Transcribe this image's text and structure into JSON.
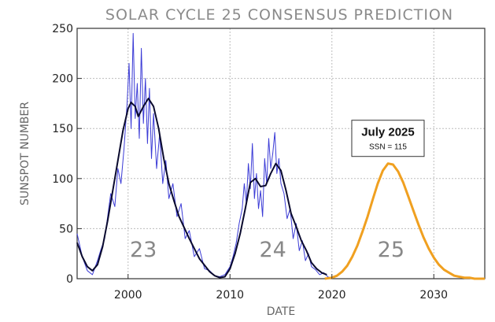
{
  "chart_data": {
    "type": "line",
    "title": "SOLAR CYCLE 25 CONSENSUS PREDICTION",
    "xlabel": "DATE",
    "ylabel": "SUNSPOT NUMBER",
    "xlim": [
      1995,
      2035
    ],
    "ylim": [
      0,
      250
    ],
    "xticks": [
      2000,
      2010,
      2020,
      2030
    ],
    "yticks": [
      0,
      50,
      100,
      150,
      200,
      250
    ],
    "grid": true,
    "cycle_labels": [
      {
        "text": "23",
        "x": 2001.5,
        "y": 22
      },
      {
        "text": "24",
        "x": 2014.2,
        "y": 22
      },
      {
        "text": "25",
        "x": 2025.8,
        "y": 22
      }
    ],
    "annotation": {
      "title": "July 2025",
      "subtitle": "SSN = 115",
      "x": 2025.5,
      "y": 115
    },
    "colors": {
      "monthly": "#3b3bd6",
      "smoothed": "#0a0a2e",
      "prediction": "#f0a020",
      "grid": "#bdbdbd"
    },
    "series": [
      {
        "color": "#3b3bd6",
        "x": [
          1995.0,
          1995.5,
          1996.0,
          1996.5,
          1997.0,
          1997.3,
          1997.7,
          1998.0,
          1998.3,
          1998.7,
          1999.0,
          1999.3,
          1999.6,
          1999.9,
          2000.1,
          2000.3,
          2000.5,
          2000.7,
          2000.9,
          2001.1,
          2001.3,
          2001.5,
          2001.7,
          2001.9,
          2002.1,
          2002.3,
          2002.5,
          2002.8,
          2003.1,
          2003.4,
          2003.7,
          2004.0,
          2004.4,
          2004.8,
          2005.2,
          2005.6,
          2006.0,
          2006.5,
          2007.0,
          2007.5,
          2008.0,
          2008.5,
          2009.0,
          2009.5,
          2010.0,
          2010.3,
          2010.6,
          2010.9,
          2011.2,
          2011.4,
          2011.6,
          2011.8,
          2012.0,
          2012.2,
          2012.4,
          2012.6,
          2012.8,
          2013.0,
          2013.2,
          2013.4,
          2013.6,
          2013.8,
          2014.0,
          2014.2,
          2014.4,
          2014.6,
          2014.8,
          2015.0,
          2015.3,
          2015.6,
          2015.9,
          2016.2,
          2016.5,
          2016.8,
          2017.1,
          2017.4,
          2017.7,
          2018.0,
          2018.4,
          2018.8,
          2019.2,
          2019.6,
          2019.9
        ],
        "values": [
          45,
          22,
          8,
          4,
          18,
          28,
          40,
          62,
          85,
          72,
          110,
          95,
          130,
          175,
          215,
          150,
          245,
          160,
          195,
          140,
          230,
          155,
          200,
          135,
          190,
          120,
          165,
          110,
          145,
          95,
          118,
          80,
          95,
          62,
          75,
          40,
          48,
          22,
          30,
          10,
          8,
          3,
          2,
          4,
          12,
          22,
          35,
          55,
          70,
          95,
          75,
          115,
          90,
          135,
          80,
          105,
          70,
          88,
          62,
          120,
          95,
          140,
          110,
          125,
          146,
          105,
          120,
          95,
          85,
          60,
          70,
          40,
          55,
          28,
          38,
          18,
          25,
          12,
          9,
          4,
          6,
          2,
          0
        ]
      },
      {
        "color": "#0a0a2e",
        "x": [
          1995.0,
          1995.5,
          1996.0,
          1996.5,
          1997.0,
          1997.5,
          1998.0,
          1998.5,
          1999.0,
          1999.5,
          2000.0,
          2000.3,
          2000.7,
          2001.0,
          2001.5,
          2002.0,
          2002.5,
          2003.0,
          2003.5,
          2004.0,
          2004.5,
          2005.0,
          2006.0,
          2007.0,
          2008.0,
          2008.5,
          2009.0,
          2009.5,
          2010.0,
          2010.5,
          2011.0,
          2011.5,
          2012.0,
          2012.5,
          2013.0,
          2013.5,
          2014.0,
          2014.5,
          2015.0,
          2015.5,
          2016.0,
          2016.5,
          2017.0,
          2017.5,
          2018.0,
          2018.5,
          2019.0,
          2019.5
        ],
        "values": [
          36,
          22,
          12,
          8,
          14,
          32,
          58,
          88,
          118,
          148,
          170,
          176,
          172,
          162,
          172,
          180,
          172,
          150,
          120,
          95,
          78,
          62,
          40,
          20,
          7,
          3,
          1,
          2,
          10,
          25,
          45,
          70,
          96,
          100,
          92,
          93,
          105,
          115,
          108,
          88,
          65,
          52,
          38,
          28,
          16,
          10,
          6,
          4
        ]
      },
      {
        "color": "#f0a020",
        "x": [
          2019.3,
          2020.0,
          2020.5,
          2021.0,
          2021.5,
          2022.0,
          2022.5,
          2023.0,
          2023.5,
          2024.0,
          2024.5,
          2025.0,
          2025.5,
          2026.0,
          2026.5,
          2027.0,
          2027.5,
          2028.0,
          2028.5,
          2029.0,
          2029.5,
          2030.0,
          2030.5,
          2031.0,
          2031.5,
          2032.0,
          2032.5,
          2033.0,
          2033.5,
          2034.0,
          2034.5,
          2035.0
        ],
        "values": [
          0,
          1,
          3,
          7,
          13,
          22,
          33,
          47,
          62,
          79,
          95,
          108,
          115,
          114,
          107,
          96,
          82,
          68,
          54,
          41,
          30,
          21,
          14,
          9,
          6,
          3,
          2,
          1,
          1,
          0,
          0,
          0
        ]
      }
    ]
  }
}
